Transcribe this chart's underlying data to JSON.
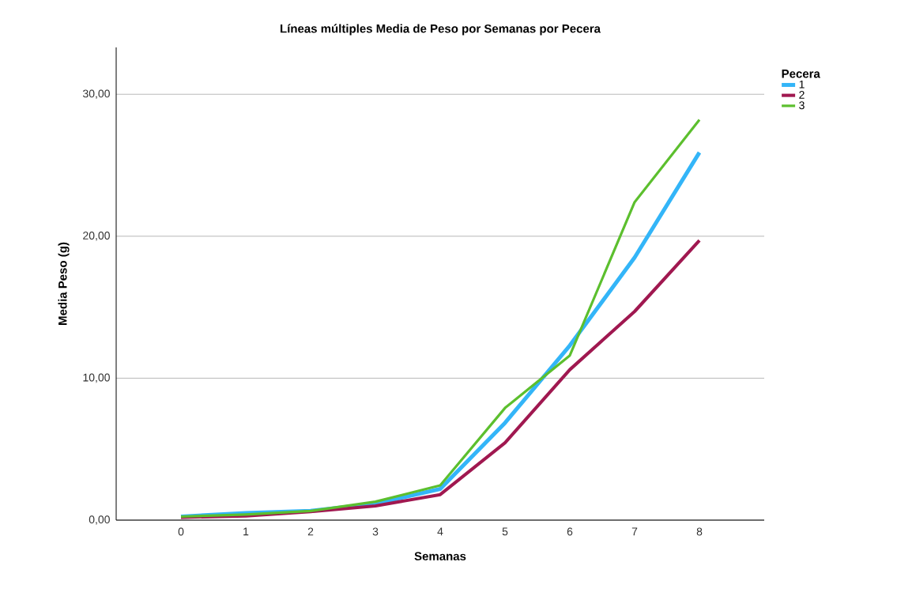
{
  "chart_data": {
    "type": "line",
    "title": "Líneas múltiples Media de Peso por Semanas por Pecera",
    "xlabel": "Semanas",
    "ylabel": "Media Peso (g)",
    "legend_title": "Pecera",
    "x": [
      0,
      1,
      2,
      3,
      4,
      5,
      6,
      7,
      8
    ],
    "series": [
      {
        "name": "1",
        "color": "#33b5f8",
        "values": [
          0.25,
          0.5,
          0.65,
          1.15,
          2.2,
          6.85,
          12.3,
          18.5,
          25.9
        ]
      },
      {
        "name": "2",
        "color": "#a01850",
        "values": [
          0.2,
          0.3,
          0.6,
          1.0,
          1.8,
          5.45,
          10.6,
          14.7,
          19.7
        ]
      },
      {
        "name": "3",
        "color": "#5cbf2e",
        "values": [
          0.25,
          0.4,
          0.65,
          1.3,
          2.45,
          7.9,
          11.6,
          22.4,
          28.2
        ]
      }
    ],
    "xlim": [
      -1,
      9
    ],
    "ylim": [
      0,
      33.3
    ],
    "xticks": [
      0,
      1,
      2,
      3,
      4,
      5,
      6,
      7,
      8
    ],
    "yticks": [
      {
        "value": 0,
        "label": "0,00"
      },
      {
        "value": 10,
        "label": "10,00"
      },
      {
        "value": 20,
        "label": "20,00"
      },
      {
        "value": 30,
        "label": "30,00"
      }
    ],
    "grid": "y",
    "legend": "top right",
    "marker": "none",
    "line_style": "solid"
  }
}
